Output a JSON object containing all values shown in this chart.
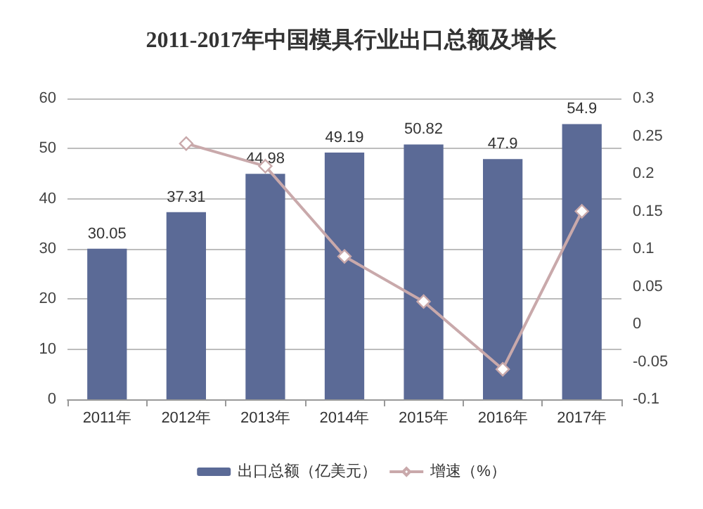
{
  "chart_data": {
    "type": "bar",
    "title": "2011-2017年中国模具行业出口总额及增长",
    "categories": [
      "2011年",
      "2012年",
      "2013年",
      "2014年",
      "2015年",
      "2016年",
      "2017年"
    ],
    "series": [
      {
        "name": "出口总额（亿美元）",
        "color": "#5b6a96",
        "values": [
          30.05,
          37.31,
          44.98,
          49.19,
          50.82,
          47.9,
          54.9
        ],
        "data_labels": true
      },
      {
        "name": "增速（%）",
        "type": "line",
        "axis": "y2",
        "color": "#c9a9ab",
        "marker": "diamond",
        "values": [
          null,
          0.24,
          0.21,
          0.09,
          0.03,
          -0.06,
          0.15
        ]
      }
    ],
    "ylim": [
      0,
      60
    ],
    "yticks": [
      0,
      10,
      20,
      30,
      40,
      50,
      60
    ],
    "y2lim": [
      -0.1,
      0.3
    ],
    "y2ticks": [
      -0.1,
      -0.05,
      0,
      0.05,
      0.1,
      0.15,
      0.2,
      0.25,
      0.3
    ],
    "grid": "y",
    "legend": "bottom"
  }
}
